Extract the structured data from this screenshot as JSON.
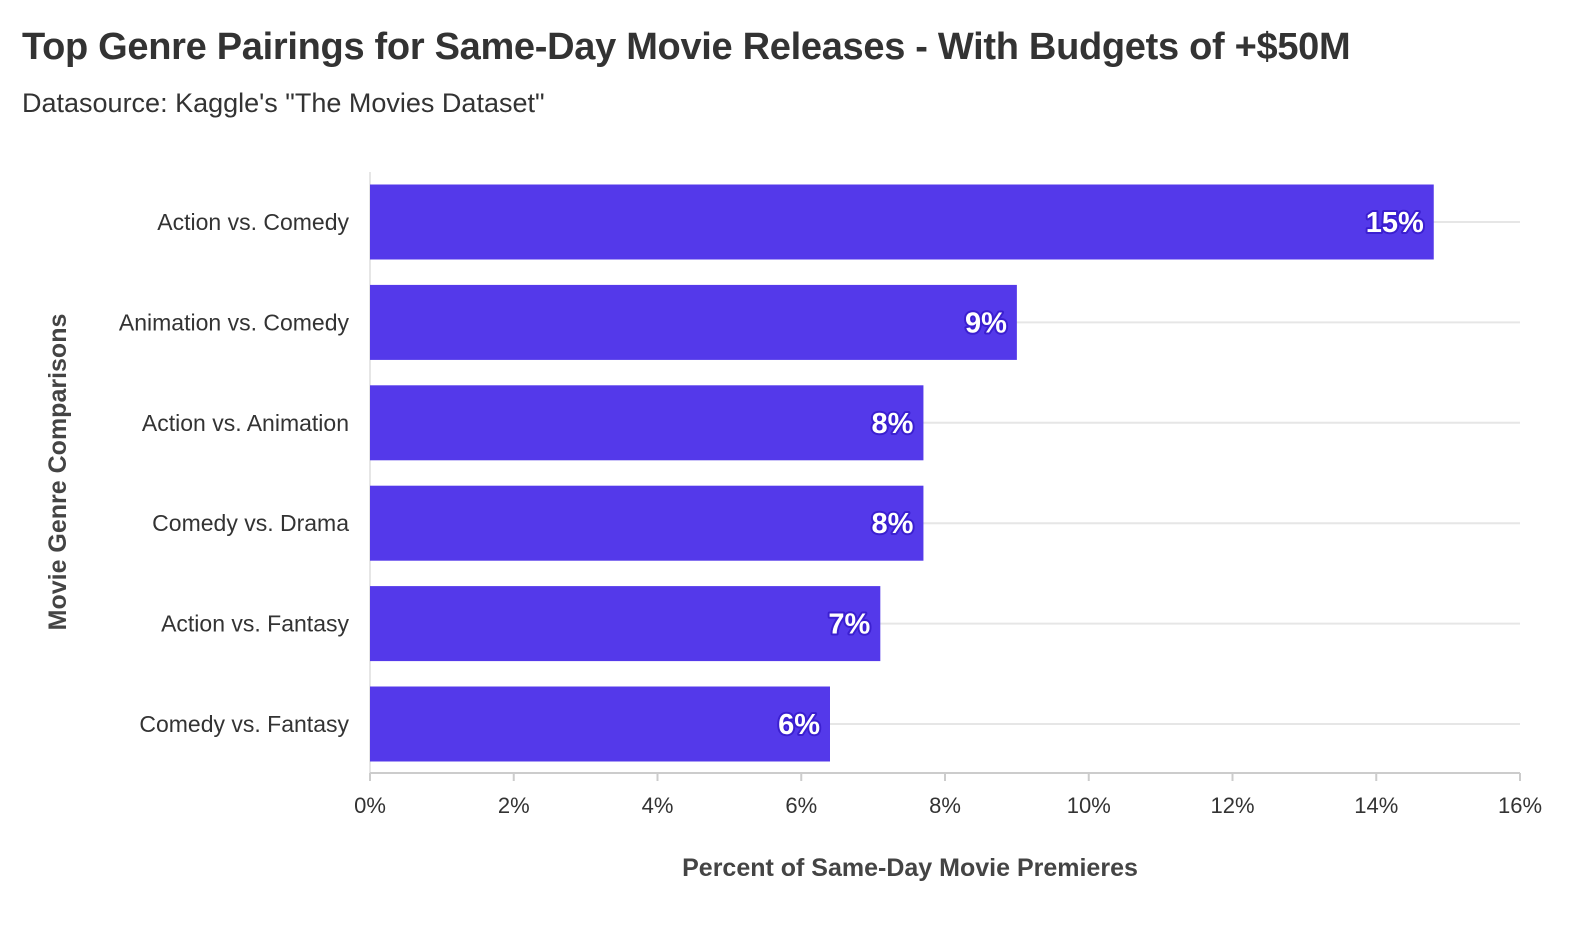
{
  "chart_data": {
    "type": "bar",
    "orientation": "horizontal",
    "title": "Top Genre Pairings for Same-Day Movie Releases - With Budgets of +$50M",
    "subtitle": "Datasource: Kaggle's \"The Movies Dataset\"",
    "xlabel": "Percent of Same-Day Movie Premieres",
    "ylabel": "Movie Genre Comparisons",
    "categories": [
      "Action vs. Comedy",
      "Animation vs. Comedy",
      "Action vs. Animation",
      "Comedy vs. Drama",
      "Action vs. Fantasy",
      "Comedy vs. Fantasy"
    ],
    "values": [
      14.8,
      9.0,
      7.7,
      7.7,
      7.1,
      6.4
    ],
    "data_labels": [
      "15%",
      "9%",
      "8%",
      "8%",
      "7%",
      "6%"
    ],
    "xlim": [
      0,
      16
    ],
    "xticks": [
      0,
      2,
      4,
      6,
      8,
      10,
      12,
      14,
      16
    ],
    "xtick_labels": [
      "0%",
      "2%",
      "4%",
      "6%",
      "8%",
      "10%",
      "12%",
      "14%",
      "16%"
    ],
    "grid": true,
    "legend": "none",
    "bar_color": "#5439ea"
  }
}
